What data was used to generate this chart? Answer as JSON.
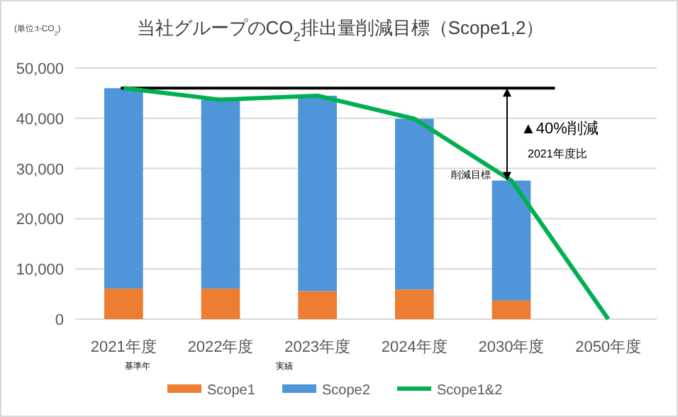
{
  "chart_data": {
    "type": "bar",
    "title": "当社グループのCO$_{2}$排出量削減目標（Scope1,2）",
    "ylabel": "(単位:t-CO$_{2}$)",
    "categories": [
      "2021年度",
      "2022年度",
      "2023年度",
      "2024年度",
      "2030年度",
      "2050年度"
    ],
    "stacked": true,
    "series": [
      {
        "name": "Scope1",
        "color": "#ed7d31",
        "values": [
          6100,
          6100,
          5600,
          5900,
          3700,
          null
        ]
      },
      {
        "name": "Scope2",
        "color": "#4e95d9",
        "values": [
          39900,
          37600,
          38900,
          34000,
          23900,
          null
        ]
      },
      {
        "name": "Scope1&2",
        "type": "line",
        "color": "#00b050",
        "values": [
          46000,
          43700,
          44500,
          39900,
          27600,
          0
        ]
      }
    ],
    "ylim": [
      0,
      50000
    ],
    "yticks": [
      {
        "value": 0,
        "label": "0"
      },
      {
        "value": 10000,
        "label": "10,000"
      },
      {
        "value": 20000,
        "label": "20,000"
      },
      {
        "value": 30000,
        "label": "30,000"
      },
      {
        "value": 40000,
        "label": "40,000"
      },
      {
        "value": 50000,
        "label": "50,000"
      }
    ],
    "grid": "y",
    "legend": "bottom",
    "ref_lines": [
      {
        "axis": "y",
        "value": 46000,
        "color": "#000000"
      }
    ],
    "annotations": [
      "▲40%削減",
      "2021年度比",
      {
        "text": "削減目標",
        "x": "2030年度",
        "y": 27600
      },
      "基準年",
      "実績"
    ]
  }
}
